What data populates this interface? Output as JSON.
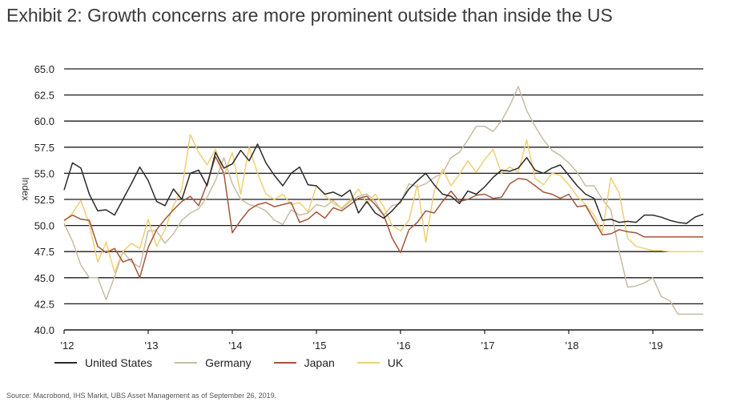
{
  "title": "Exhibit 2: Growth concerns are more prominent outside than inside the US",
  "source": "Source: Macrobond, IHS Markit, UBS Asset Management as of September 26, 2019.",
  "chart_data": {
    "type": "line",
    "ylabel": "Index",
    "xlabel": "",
    "ylim": [
      40.0,
      65.0
    ],
    "xlim": [
      2012.0,
      2019.6
    ],
    "y_ticks": [
      "65.0",
      "62.5",
      "60.0",
      "57.5",
      "55.0",
      "52.5",
      "50.0",
      "47.5",
      "45.0",
      "42.5",
      "40.0"
    ],
    "x_ticks": [
      {
        "label": "'12",
        "value": 2012
      },
      {
        "label": "'13",
        "value": 2013
      },
      {
        "label": "'14",
        "value": 2014
      },
      {
        "label": "'15",
        "value": 2015
      },
      {
        "label": "'16",
        "value": 2016
      },
      {
        "label": "'17",
        "value": 2017
      },
      {
        "label": "'18",
        "value": 2018
      },
      {
        "label": "'19",
        "value": 2019
      }
    ],
    "grid": "horizontal",
    "legend_position": "bottom-left",
    "x": [
      2012.0,
      2012.1,
      2012.2,
      2012.3,
      2012.4,
      2012.5,
      2012.6,
      2012.7,
      2012.8,
      2012.9,
      2013.0,
      2013.1,
      2013.2,
      2013.3,
      2013.4,
      2013.5,
      2013.6,
      2013.7,
      2013.8,
      2013.9,
      2014.0,
      2014.1,
      2014.2,
      2014.3,
      2014.4,
      2014.5,
      2014.6,
      2014.7,
      2014.8,
      2014.9,
      2015.0,
      2015.1,
      2015.2,
      2015.3,
      2015.4,
      2015.5,
      2015.6,
      2015.7,
      2015.8,
      2015.9,
      2016.0,
      2016.1,
      2016.2,
      2016.3,
      2016.4,
      2016.5,
      2016.6,
      2016.7,
      2016.8,
      2016.9,
      2017.0,
      2017.1,
      2017.2,
      2017.3,
      2017.4,
      2017.5,
      2017.6,
      2017.7,
      2017.8,
      2017.9,
      2018.0,
      2018.1,
      2018.2,
      2018.3,
      2018.4,
      2018.5,
      2018.6,
      2018.7,
      2018.8,
      2018.9,
      2019.0,
      2019.1,
      2019.2,
      2019.3,
      2019.4,
      2019.5,
      2019.6
    ],
    "series": [
      {
        "name": "United States",
        "color": "#2b2b2b",
        "values": [
          53.4,
          56.0,
          55.5,
          53.0,
          51.4,
          51.5,
          51.0,
          52.5,
          54.0,
          55.6,
          54.3,
          52.3,
          51.9,
          53.5,
          52.5,
          55.0,
          55.3,
          53.8,
          57.0,
          55.5,
          55.9,
          57.2,
          56.2,
          57.8,
          56.0,
          54.8,
          53.8,
          55.0,
          55.6,
          53.9,
          53.8,
          53.0,
          53.2,
          52.8,
          53.4,
          51.2,
          52.3,
          51.2,
          50.7,
          51.4,
          52.3,
          53.5,
          54.3,
          55.0,
          53.9,
          53.0,
          52.8,
          52.1,
          53.3,
          53.0,
          53.7,
          54.6,
          55.3,
          55.2,
          55.5,
          56.5,
          55.3,
          55.0,
          55.5,
          55.8,
          54.8,
          53.8,
          53.0,
          52.6,
          50.5,
          50.6,
          50.3,
          50.4,
          50.3,
          51.0,
          51.0,
          50.8,
          50.5,
          50.3,
          50.2,
          50.8,
          51.1
        ]
      },
      {
        "name": "Germany",
        "color": "#c8bca4",
        "values": [
          50.2,
          48.5,
          46.2,
          45.0,
          45.0,
          42.9,
          45.1,
          47.5,
          46.5,
          46.0,
          49.5,
          49.5,
          48.3,
          49.2,
          50.5,
          51.2,
          51.6,
          52.7,
          54.3,
          56.5,
          54.0,
          52.5,
          52.0,
          51.8,
          51.4,
          50.5,
          50.1,
          51.5,
          51.0,
          51.2,
          52.0,
          51.8,
          52.4,
          51.6,
          52.3,
          52.8,
          53.0,
          52.3,
          51.0,
          51.9,
          52.1,
          54.0,
          53.7,
          54.0,
          54.6,
          55.0,
          56.5,
          57.0,
          58.2,
          59.5,
          59.5,
          59.0,
          60.0,
          61.5,
          63.3,
          61.0,
          59.5,
          58.2,
          57.2,
          56.7,
          56.0,
          55.1,
          53.8,
          53.8,
          52.5,
          51.5,
          47.5,
          44.1,
          44.2,
          44.5,
          45.0,
          43.2,
          42.8,
          41.5,
          41.5,
          41.5,
          41.5
        ]
      },
      {
        "name": "Japan",
        "color": "#a4563a",
        "values": [
          50.5,
          51.0,
          50.6,
          50.5,
          48.0,
          47.4,
          47.8,
          46.5,
          46.8,
          45.0,
          47.9,
          49.6,
          50.6,
          51.5,
          52.3,
          52.8,
          51.9,
          54.0,
          56.6,
          55.0,
          49.3,
          50.5,
          51.5,
          52.0,
          52.2,
          51.8,
          52.0,
          52.2,
          50.3,
          50.6,
          51.3,
          50.7,
          51.7,
          51.4,
          52.0,
          52.6,
          52.8,
          52.0,
          51.0,
          48.8,
          47.4,
          49.6,
          50.3,
          51.4,
          51.2,
          52.3,
          53.3,
          52.3,
          52.5,
          52.9,
          53.0,
          52.6,
          52.7,
          54.0,
          54.5,
          54.4,
          53.8,
          53.2,
          53.0,
          52.6,
          53.0,
          51.8,
          51.9,
          50.5,
          49.1,
          49.2,
          49.6,
          49.4,
          49.3,
          48.9,
          48.9,
          48.9,
          48.9,
          48.9,
          48.9,
          48.9,
          48.9
        ]
      },
      {
        "name": "UK",
        "color": "#efcf73",
        "values": [
          50.4,
          51.2,
          52.4,
          50.1,
          46.5,
          48.4,
          45.5,
          47.5,
          48.3,
          47.8,
          50.6,
          48.0,
          49.6,
          51.9,
          53.5,
          58.7,
          57.0,
          55.8,
          57.3,
          54.8,
          57.0,
          53.0,
          57.5,
          55.0,
          53.0,
          52.5,
          53.0,
          52.0,
          52.2,
          51.3,
          53.8,
          52.9,
          52.1,
          51.7,
          52.4,
          53.5,
          52.1,
          53.0,
          51.8,
          50.0,
          49.5,
          50.5,
          53.9,
          48.4,
          53.3,
          55.4,
          53.8,
          54.9,
          56.2,
          55.1,
          56.3,
          57.3,
          55.0,
          55.6,
          55.1,
          58.2,
          54.5,
          53.9,
          55.0,
          54.8,
          53.9,
          52.8,
          52.0,
          51.0,
          49.4,
          54.6,
          53.1,
          48.8,
          48.0,
          47.8,
          47.6,
          47.6,
          47.5,
          47.5,
          47.5,
          47.5,
          47.5
        ]
      }
    ]
  }
}
